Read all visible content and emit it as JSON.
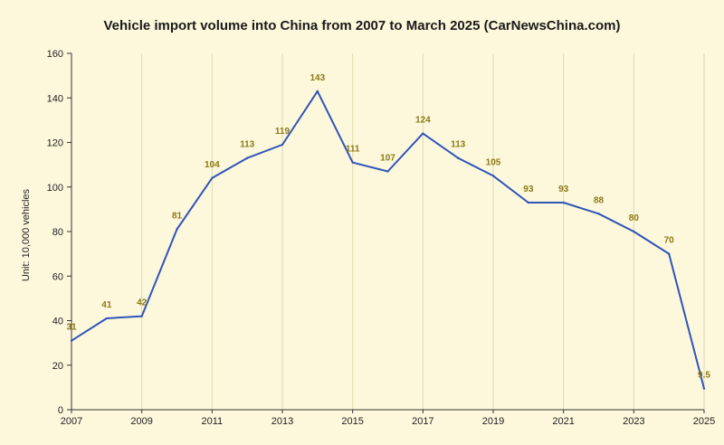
{
  "chart_data": {
    "type": "line",
    "title": "Vehicle import volume into China from 2007 to March 2025 (CarNewsChina.com)",
    "xlabel": "",
    "ylabel": "Unit: 10,000 vehicles",
    "x": [
      2007,
      2008,
      2009,
      2010,
      2011,
      2012,
      2013,
      2014,
      2015,
      2016,
      2017,
      2018,
      2019,
      2020,
      2021,
      2022,
      2023,
      2024,
      2025
    ],
    "values": [
      31,
      41,
      42,
      81,
      104,
      113,
      119,
      143,
      111,
      107,
      124,
      113,
      105,
      93,
      93,
      88,
      80,
      70,
      9.5
    ],
    "labels": [
      "31",
      "41",
      "42",
      "81",
      "104",
      "113",
      "119",
      "143",
      "111",
      "107",
      "124",
      "113",
      "105",
      "93",
      "93",
      "88",
      "80",
      "70",
      "9.5"
    ],
    "xlim": [
      2007,
      2025
    ],
    "ylim": [
      0,
      160
    ],
    "xticks": [
      2007,
      2009,
      2011,
      2013,
      2015,
      2017,
      2019,
      2021,
      2023,
      2025
    ],
    "yticks": [
      0,
      20,
      40,
      60,
      80,
      100,
      120,
      140,
      160
    ],
    "grid": "vertical",
    "line_color": "#2f55b8",
    "label_color": "#8a7a14",
    "grid_color": "#e0d9b4"
  }
}
